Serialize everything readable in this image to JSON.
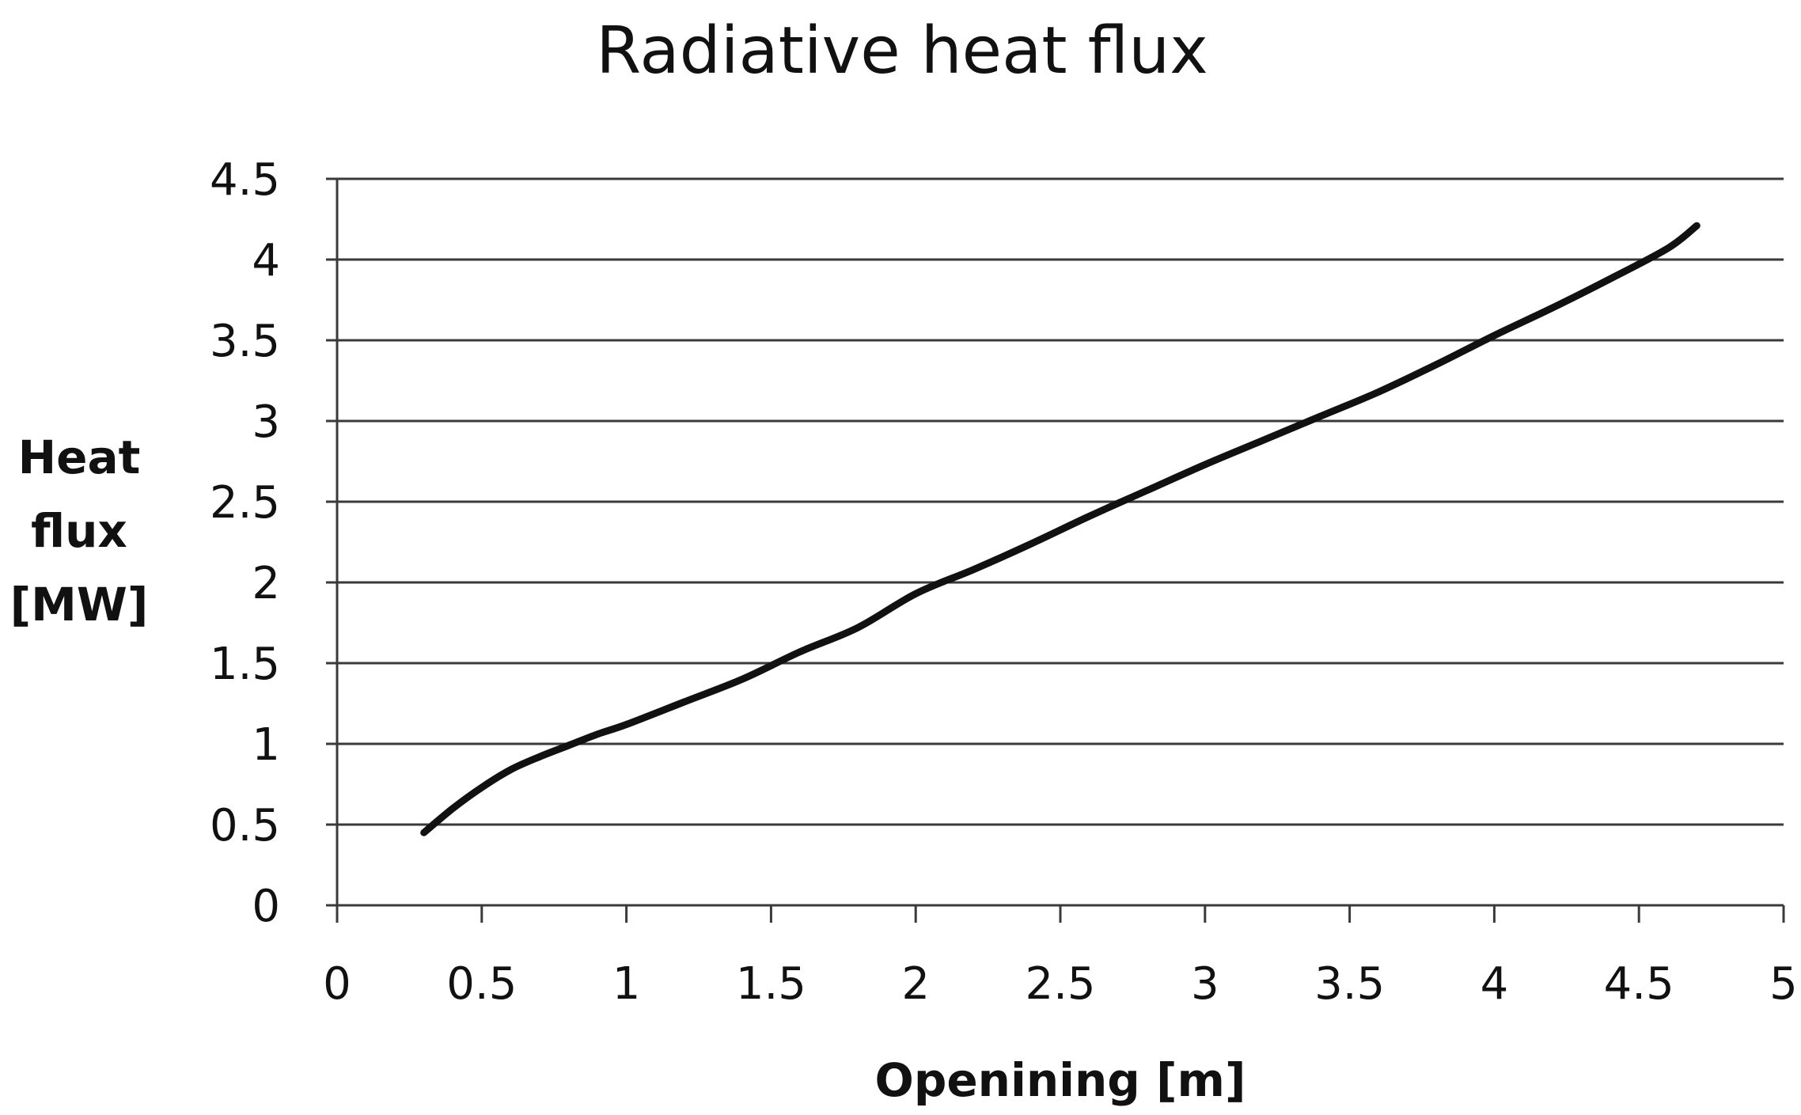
{
  "chart_data": {
    "type": "line",
    "title": "Radiative heat flux",
    "xlabel": "Openining [m]",
    "ylabel": [
      "Heat",
      "flux",
      "[MW]"
    ],
    "xlim": [
      0,
      5
    ],
    "ylim": [
      0,
      4.5
    ],
    "x_ticks": [
      "0",
      "0.5",
      "1",
      "1.5",
      "2",
      "2.5",
      "3",
      "3.5",
      "4",
      "4.5",
      "5"
    ],
    "y_ticks": [
      "0",
      "0.5",
      "1",
      "1.5",
      "2",
      "2.5",
      "3",
      "3.5",
      "4",
      "4.5"
    ],
    "grid": "horizontal",
    "legend": "none",
    "series": [
      {
        "color": "#111111",
        "x": [
          0.3,
          0.4,
          0.5,
          0.6,
          0.7,
          0.8,
          0.9,
          1.0,
          1.2,
          1.4,
          1.6,
          1.8,
          2.0,
          2.2,
          2.4,
          2.6,
          2.8,
          3.0,
          3.2,
          3.4,
          3.6,
          3.8,
          4.0,
          4.2,
          4.4,
          4.6,
          4.7
        ],
        "y": [
          0.45,
          0.6,
          0.73,
          0.84,
          0.92,
          0.99,
          1.06,
          1.12,
          1.26,
          1.4,
          1.57,
          1.72,
          1.93,
          2.08,
          2.24,
          2.41,
          2.57,
          2.73,
          2.88,
          3.03,
          3.18,
          3.35,
          3.53,
          3.7,
          3.88,
          4.07,
          4.21
        ]
      }
    ]
  }
}
